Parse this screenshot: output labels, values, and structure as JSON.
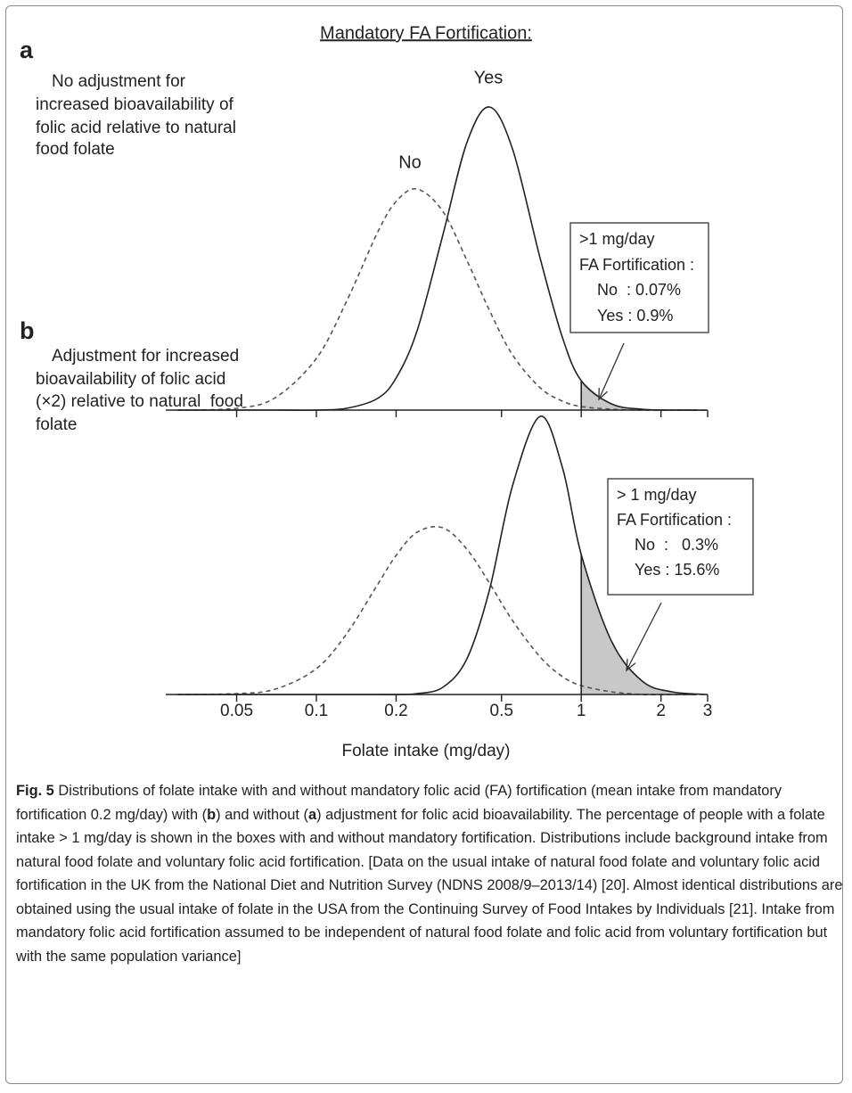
{
  "header": {
    "title": "Mandatory FA Fortification:"
  },
  "chart_data": [
    {
      "type": "line",
      "panel_label": "a",
      "note": [
        "No adjustment for",
        "increased bioavailability of",
        "folic acid relative to natural",
        "food folate"
      ],
      "x": [
        0.03,
        0.05,
        0.07,
        0.1,
        0.13,
        0.17,
        0.2,
        0.24,
        0.3,
        0.37,
        0.45,
        0.55,
        0.7,
        0.85,
        1,
        1.3,
        1.7,
        2.2,
        3
      ],
      "series": [
        {
          "name": "No",
          "color": "#555555",
          "dashed": true,
          "values": [
            0,
            2,
            14,
            58,
            122,
            199,
            234,
            248,
            223,
            168,
            112,
            62,
            25,
            10,
            4,
            1,
            0,
            0,
            0
          ]
        },
        {
          "name": "Yes",
          "color": "#222222",
          "dashed": false,
          "values": [
            0,
            0,
            0,
            0,
            2,
            13,
            36,
            89,
            196,
            300,
            340,
            293,
            170,
            81,
            33,
            7,
            1,
            0,
            0
          ]
        }
      ],
      "xlim": [
        0.027,
        3
      ],
      "ylim": [
        0,
        360
      ],
      "log_x": true,
      "xticks": [
        0.05,
        0.1,
        0.2,
        0.5,
        1,
        2,
        3
      ],
      "tick_labels": false,
      "threshold": 1,
      "shade_color": "#c8c8c8",
      "annotation": [
        ">1 mg/day",
        "FA Fortification :",
        "No  : 0.07%",
        "Yes : 0.9%"
      ]
    },
    {
      "type": "line",
      "panel_label": "b",
      "note": [
        "Adjustment for increased",
        "bioavailability of folic acid",
        "(×2) relative to natural  food",
        "folate"
      ],
      "x": [
        0.03,
        0.05,
        0.07,
        0.1,
        0.13,
        0.17,
        0.2,
        0.24,
        0.3,
        0.37,
        0.45,
        0.55,
        0.7,
        0.85,
        1,
        1.3,
        1.7,
        2.2,
        3
      ],
      "series": [
        {
          "color": "#555555",
          "dashed": true,
          "values": [
            0,
            1,
            6,
            29,
            68,
            123,
            156,
            182,
            187,
            163,
            125,
            83,
            42,
            20,
            10,
            3,
            0,
            0,
            0
          ]
        },
        {
          "color": "#222222",
          "dashed": false,
          "values": [
            0,
            0,
            0,
            0,
            0,
            0,
            0,
            1,
            8,
            40,
            117,
            234,
            312,
            254,
            157,
            60,
            15,
            3,
            0
          ]
        }
      ],
      "xlim": [
        0.027,
        3
      ],
      "ylim": [
        0,
        360
      ],
      "log_x": true,
      "xticks": [
        0.05,
        0.1,
        0.2,
        0.5,
        1,
        2,
        3
      ],
      "tick_labels": true,
      "x_label": "Folate intake (mg/day)",
      "threshold": 1,
      "shade_color": "#c8c8c8",
      "annotation": [
        "> 1 mg/day",
        "FA Fortification :",
        "No  :   0.3%",
        "Yes : 15.6%"
      ]
    }
  ],
  "caption": {
    "runs": [
      {
        "text": "Fig. 5",
        "bold": true
      },
      {
        "text": " Distributions of folate intake with and without mandatory folic acid (FA) fortification (mean intake from mandatory fortification 0.2 mg/day) with ("
      },
      {
        "text": "b",
        "bold": true
      },
      {
        "text": ") and without ("
      },
      {
        "text": "a",
        "bold": true
      },
      {
        "text": ") adjustment for folic acid bioavailability. The percentage of people with a folate intake > 1 mg/day is shown in the boxes with and without mandatory fortification. Distributions include background intake from natural food folate and voluntary folic acid fortification. [Data on the usual intake of natural food folate and voluntary folic acid fortification in the UK from the National Diet and Nutrition Survey (NDNS 2008/9–2013/14) [20]. Almost identical distributions are obtained using the usual intake of folate in the USA from the Continuing Survey of Food Intakes by Individuals [21]. Intake from mandatory folic acid fortification assumed to be independent of natural food folate and folic acid from voluntary fortification but with the same population variance]"
      }
    ]
  }
}
